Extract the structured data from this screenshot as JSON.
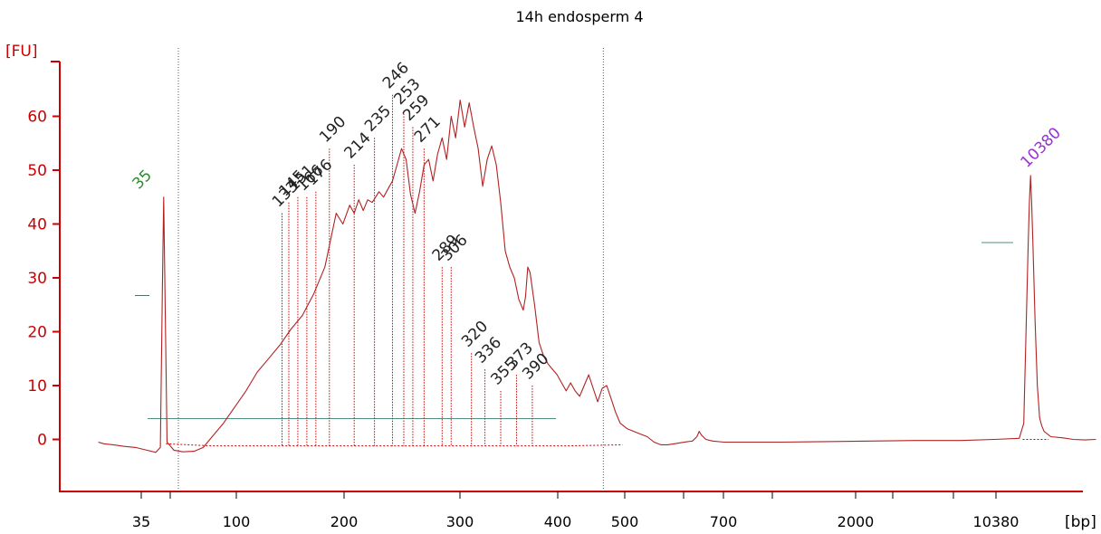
{
  "chart_data": {
    "type": "line",
    "title": "14h endosperm 4",
    "ylabel": "[FU]",
    "xlabel": "[bp]",
    "ylim": [
      -9,
      70
    ],
    "yticks": [
      0,
      10,
      20,
      30,
      40,
      50,
      60
    ],
    "xtick_labels": [
      "35",
      "100",
      "200",
      "300",
      "400",
      "500",
      "700",
      "2000",
      "10380"
    ],
    "markers": [
      {
        "label": "35",
        "color": "#2e8b2e"
      },
      {
        "label": "10380",
        "color": "#9b30d9"
      }
    ],
    "peaks": [
      {
        "label": "133",
        "fu": 42
      },
      {
        "label": "145",
        "fu": 44
      },
      {
        "label": "151",
        "fu": 45
      },
      {
        "label": "166",
        "fu": 45
      },
      {
        "label": "176",
        "fu": 46
      },
      {
        "label": "190",
        "fu": 54
      },
      {
        "label": "214",
        "fu": 51
      },
      {
        "label": "235",
        "fu": 56
      },
      {
        "label": "246",
        "fu": 64
      },
      {
        "label": "253",
        "fu": 61
      },
      {
        "label": "259",
        "fu": 58
      },
      {
        "label": "271",
        "fu": 54
      },
      {
        "label": "289",
        "fu": 32
      },
      {
        "label": "306",
        "fu": 32
      },
      {
        "label": "320",
        "fu": 16
      },
      {
        "label": "336",
        "fu": 13
      },
      {
        "label": "355",
        "fu": 9
      },
      {
        "label": "373",
        "fu": 12
      },
      {
        "label": "390",
        "fu": 10
      }
    ],
    "colors": {
      "axis": "#cc0000",
      "trace": "#b22222",
      "peak_label": "#222222",
      "baseline": "#4f8f80"
    },
    "series": [
      {
        "values": [
          [
            35,
            -0.5
          ],
          [
            40,
            -0.8
          ],
          [
            48,
            -1
          ],
          [
            58,
            -1.3
          ],
          [
            68,
            -1.5
          ],
          [
            78,
            -2
          ],
          [
            86,
            -2.4
          ],
          [
            90,
            -1.5
          ],
          [
            92,
            30
          ],
          [
            93,
            45
          ],
          [
            94,
            30
          ],
          [
            96,
            -0.5
          ],
          [
            102,
            -2
          ],
          [
            110,
            -2.3
          ],
          [
            120,
            -2.2
          ],
          [
            128,
            -1.5
          ],
          [
            136,
            0.5
          ],
          [
            146,
            3
          ],
          [
            156,
            6
          ],
          [
            166,
            9
          ],
          [
            176,
            12.5
          ],
          [
            186,
            15
          ],
          [
            196,
            17.5
          ],
          [
            206,
            20.5
          ],
          [
            216,
            23
          ],
          [
            226,
            27
          ],
          [
            236,
            32
          ],
          [
            242,
            38
          ],
          [
            246,
            42
          ],
          [
            252,
            40
          ],
          [
            258,
            43.5
          ],
          [
            262,
            42
          ],
          [
            266,
            44.5
          ],
          [
            270,
            42.5
          ],
          [
            274,
            44.5
          ],
          [
            278,
            44
          ],
          [
            284,
            46
          ],
          [
            288,
            45
          ],
          [
            292,
            46.5
          ],
          [
            296,
            48
          ],
          [
            300,
            51
          ],
          [
            304,
            54
          ],
          [
            308,
            52
          ],
          [
            312,
            45.5
          ],
          [
            316,
            42
          ],
          [
            320,
            46
          ],
          [
            324,
            51
          ],
          [
            328,
            52
          ],
          [
            332,
            48
          ],
          [
            336,
            53
          ],
          [
            340,
            56
          ],
          [
            344,
            52
          ],
          [
            348,
            60
          ],
          [
            352,
            56
          ],
          [
            356,
            63
          ],
          [
            360,
            58
          ],
          [
            364,
            62.5
          ],
          [
            368,
            58
          ],
          [
            372,
            54
          ],
          [
            376,
            47
          ],
          [
            380,
            52
          ],
          [
            384,
            54.5
          ],
          [
            388,
            51
          ],
          [
            392,
            44
          ],
          [
            396,
            35
          ],
          [
            400,
            32
          ],
          [
            404,
            30
          ],
          [
            408,
            26
          ],
          [
            412,
            24
          ],
          [
            414,
            26.5
          ],
          [
            416,
            32
          ],
          [
            418,
            31
          ],
          [
            422,
            25
          ],
          [
            426,
            18
          ],
          [
            430,
            15.5
          ],
          [
            434,
            14
          ],
          [
            438,
            13
          ],
          [
            442,
            12
          ],
          [
            446,
            10.5
          ],
          [
            450,
            9
          ],
          [
            454,
            10.5
          ],
          [
            458,
            9
          ],
          [
            462,
            8
          ],
          [
            466,
            10
          ],
          [
            470,
            12
          ],
          [
            474,
            9.5
          ],
          [
            478,
            7
          ],
          [
            482,
            9.5
          ],
          [
            486,
            10
          ],
          [
            490,
            7.5
          ],
          [
            494,
            5
          ],
          [
            498,
            3
          ],
          [
            504,
            2
          ],
          [
            510,
            1.5
          ],
          [
            516,
            1
          ],
          [
            522,
            0.5
          ],
          [
            528,
            -0.5
          ],
          [
            534,
            -1
          ],
          [
            540,
            -1
          ],
          [
            546,
            -0.8
          ],
          [
            552,
            -0.6
          ],
          [
            558,
            -0.4
          ],
          [
            562,
            -0.3
          ],
          [
            566,
            0.5
          ],
          [
            568,
            1.5
          ],
          [
            570,
            0.8
          ],
          [
            574,
            0
          ],
          [
            580,
            -0.3
          ],
          [
            590,
            -0.5
          ],
          [
            610,
            -0.5
          ],
          [
            640,
            -0.5
          ],
          [
            680,
            -0.4
          ],
          [
            720,
            -0.3
          ],
          [
            760,
            -0.2
          ],
          [
            800,
            -0.2
          ],
          [
            830,
            0
          ],
          [
            852,
            0.2
          ],
          [
            856,
            3
          ],
          [
            858,
            20
          ],
          [
            860,
            37
          ],
          [
            861,
            44
          ],
          [
            862,
            49
          ],
          [
            863,
            44
          ],
          [
            864,
            37
          ],
          [
            866,
            22
          ],
          [
            868,
            10
          ],
          [
            870,
            4
          ],
          [
            872,
            2.5
          ],
          [
            874,
            1.5
          ],
          [
            880,
            0.5
          ],
          [
            890,
            0.3
          ],
          [
            900,
            0
          ],
          [
            910,
            -0.1
          ],
          [
            920,
            0
          ]
        ]
      }
    ]
  }
}
